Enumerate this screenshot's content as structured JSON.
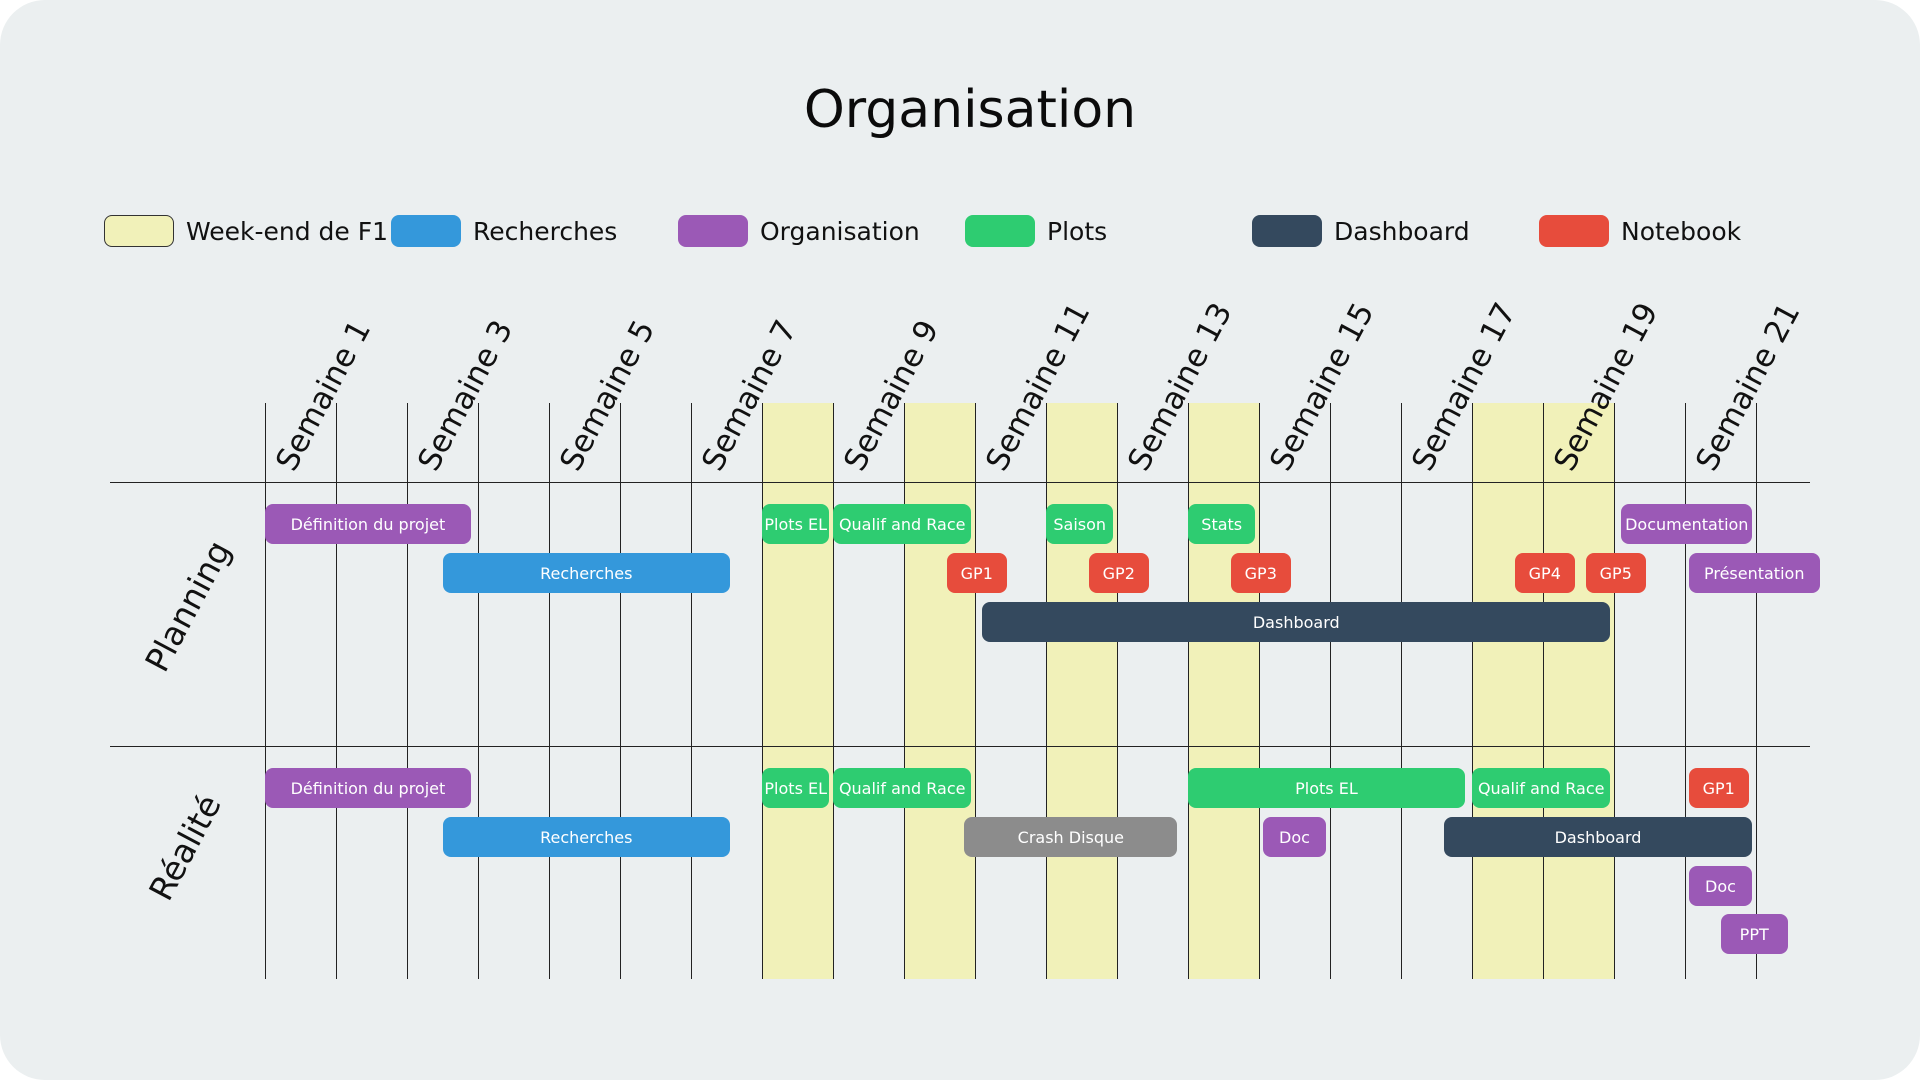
{
  "title": "Organisation",
  "colors": {
    "weekend": "#f1f1b9",
    "recherches": "#3498db",
    "organisation": "#9b59b6",
    "plots": "#2ecc71",
    "dashboard": "#34495e",
    "notebook": "#e74c3c",
    "crash": "#8c8c8c"
  },
  "legend": [
    {
      "label": "Week-end de F1",
      "category": "weekend"
    },
    {
      "label": "Recherches",
      "category": "recherches"
    },
    {
      "label": "Organisation",
      "category": "organisation"
    },
    {
      "label": "Plots",
      "category": "plots"
    },
    {
      "label": "Dashboard",
      "category": "dashboard"
    },
    {
      "label": "Notebook",
      "category": "notebook"
    }
  ],
  "week_labels": [
    "Semaine 1",
    "Semaine 3",
    "Semaine 5",
    "Semaine 7",
    "Semaine 9",
    "Semaine 11",
    "Semaine 13",
    "Semaine 15",
    "Semaine 17",
    "Semaine 19",
    "Semaine 21"
  ],
  "weekend_weeks": [
    8,
    10,
    12,
    14,
    18,
    19
  ],
  "rows": [
    {
      "label": "Planning",
      "tasks": [
        {
          "label": "Définition du projet",
          "category": "organisation",
          "start": 1,
          "end": 3.9,
          "lane": 0
        },
        {
          "label": "Plots EL",
          "category": "plots",
          "start": 8,
          "end": 8.95,
          "lane": 0
        },
        {
          "label": "Qualif and Race",
          "category": "plots",
          "start": 9,
          "end": 10.95,
          "lane": 0
        },
        {
          "label": "Saison",
          "category": "plots",
          "start": 12,
          "end": 12.95,
          "lane": 0
        },
        {
          "label": "Stats",
          "category": "plots",
          "start": 14,
          "end": 14.95,
          "lane": 0
        },
        {
          "label": "Documentation",
          "category": "organisation",
          "start": 20.1,
          "end": 21.95,
          "lane": 0
        },
        {
          "label": "Recherches",
          "category": "recherches",
          "start": 3.5,
          "end": 7.55,
          "lane": 1
        },
        {
          "label": "GP1",
          "category": "notebook",
          "start": 10.6,
          "end": 11.45,
          "lane": 1
        },
        {
          "label": "GP2",
          "category": "notebook",
          "start": 12.6,
          "end": 13.45,
          "lane": 1
        },
        {
          "label": "GP3",
          "category": "notebook",
          "start": 14.6,
          "end": 15.45,
          "lane": 1
        },
        {
          "label": "GP4",
          "category": "notebook",
          "start": 18.6,
          "end": 19.45,
          "lane": 1
        },
        {
          "label": "GP5",
          "category": "notebook",
          "start": 19.6,
          "end": 20.45,
          "lane": 1
        },
        {
          "label": "Présentation",
          "category": "organisation",
          "start": 21.05,
          "end": 22.9,
          "lane": 1
        },
        {
          "label": "Dashboard",
          "category": "dashboard",
          "start": 11.1,
          "end": 19.95,
          "lane": 2
        }
      ]
    },
    {
      "label": "Réalité",
      "tasks": [
        {
          "label": "Définition du projet",
          "category": "organisation",
          "start": 1,
          "end": 3.9,
          "lane": 0
        },
        {
          "label": "Plots EL",
          "category": "plots",
          "start": 8,
          "end": 8.95,
          "lane": 0
        },
        {
          "label": "Qualif and Race",
          "category": "plots",
          "start": 9,
          "end": 10.95,
          "lane": 0
        },
        {
          "label": "Plots EL",
          "category": "plots",
          "start": 14,
          "end": 17.9,
          "lane": 0
        },
        {
          "label": "Qualif and Race",
          "category": "plots",
          "start": 18,
          "end": 19.95,
          "lane": 0
        },
        {
          "label": "GP1",
          "category": "notebook",
          "start": 21.05,
          "end": 21.9,
          "lane": 0
        },
        {
          "label": "Recherches",
          "category": "recherches",
          "start": 3.5,
          "end": 7.55,
          "lane": 1
        },
        {
          "label": "Crash Disque",
          "category": "crash",
          "start": 10.85,
          "end": 13.85,
          "lane": 1
        },
        {
          "label": "Doc",
          "category": "organisation",
          "start": 15.05,
          "end": 15.95,
          "lane": 1
        },
        {
          "label": "Dashboard",
          "category": "dashboard",
          "start": 17.6,
          "end": 21.95,
          "lane": 1
        },
        {
          "label": "Doc",
          "category": "organisation",
          "start": 21.05,
          "end": 21.95,
          "lane": 2
        },
        {
          "label": "PPT",
          "category": "organisation",
          "start": 21.5,
          "end": 22.45,
          "lane": 3
        }
      ]
    }
  ]
}
